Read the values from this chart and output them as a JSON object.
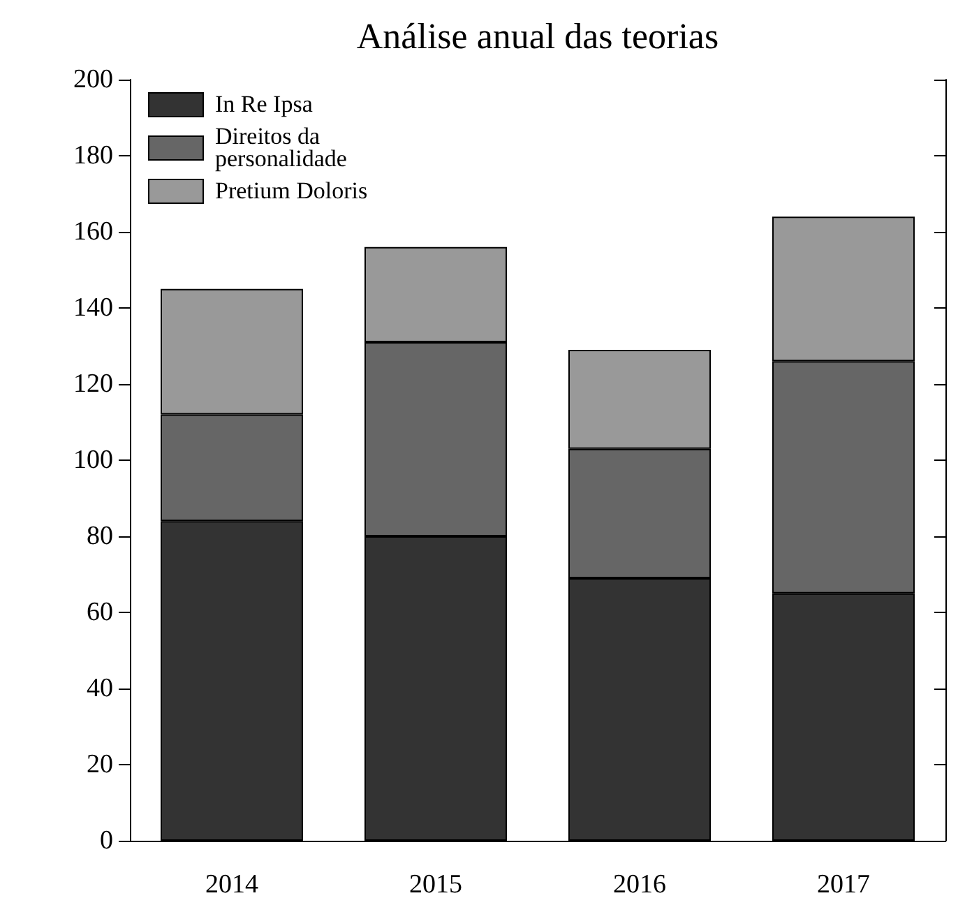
{
  "chart_data": {
    "type": "bar",
    "title": "Análise anual das teorias",
    "categories": [
      "2014",
      "2015",
      "2016",
      "2017"
    ],
    "stacked": true,
    "series": [
      {
        "name": "In Re Ipsa",
        "color": "#333333",
        "values": [
          84,
          80,
          69,
          65
        ]
      },
      {
        "name": "Direitos da\npersonalidade",
        "color": "#666666",
        "values": [
          28,
          51,
          34,
          61
        ]
      },
      {
        "name": "Pretium Doloris",
        "color": "#999999",
        "values": [
          33,
          25,
          26,
          38
        ]
      }
    ],
    "ylim": [
      0,
      200
    ],
    "yticks": [
      0,
      20,
      40,
      60,
      80,
      100,
      120,
      140,
      160,
      180,
      200
    ],
    "grid": false,
    "legend": "top left"
  }
}
